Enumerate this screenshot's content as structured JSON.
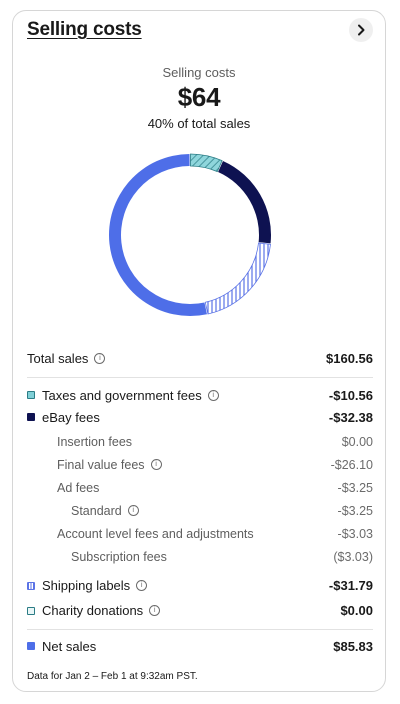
{
  "card": {
    "title": "Selling costs",
    "summary_label": "Selling costs",
    "summary_amount": "$64",
    "summary_percent": "40% of total sales"
  },
  "chart_data": {
    "type": "pie",
    "donut": true,
    "slices": [
      {
        "label": "Taxes and government fees",
        "value": 10.56,
        "color": "#7fcfd6",
        "pattern": "diagonal"
      },
      {
        "label": "eBay fees",
        "value": 32.38,
        "color": "#0e1251",
        "pattern": "solid"
      },
      {
        "label": "Shipping labels",
        "value": 31.79,
        "color": "#5b73e6",
        "pattern": "vertical"
      },
      {
        "label": "Net sales",
        "value": 85.83,
        "color": "#4e6ee8",
        "pattern": "solid"
      }
    ]
  },
  "breakdown": {
    "total_sales": {
      "label": "Total sales",
      "value": "$160.56"
    },
    "taxes": {
      "label": "Taxes and government fees",
      "value": "-$10.56"
    },
    "ebay_fees": {
      "label": "eBay fees",
      "value": "-$32.38"
    },
    "insertion_fees": {
      "label": "Insertion fees",
      "value": "$0.00"
    },
    "final_value_fees": {
      "label": "Final value fees",
      "value": "-$26.10"
    },
    "ad_fees": {
      "label": "Ad fees",
      "value": "-$3.25"
    },
    "standard": {
      "label": "Standard",
      "value": "-$3.25"
    },
    "account_level": {
      "label": "Account level fees and adjustments",
      "value": "-$3.03"
    },
    "subscription_fees": {
      "label": "Subscription fees",
      "value": "($3.03)"
    },
    "shipping_labels": {
      "label": "Shipping labels",
      "value": "-$31.79"
    },
    "charity": {
      "label": "Charity donations",
      "value": "$0.00"
    },
    "net_sales": {
      "label": "Net sales",
      "value": "$85.83"
    }
  },
  "footer": "Data for Jan 2 – Feb 1 at 9:32am PST.",
  "icons": {
    "chevron": "chevron-right-icon",
    "info": "info-icon"
  }
}
